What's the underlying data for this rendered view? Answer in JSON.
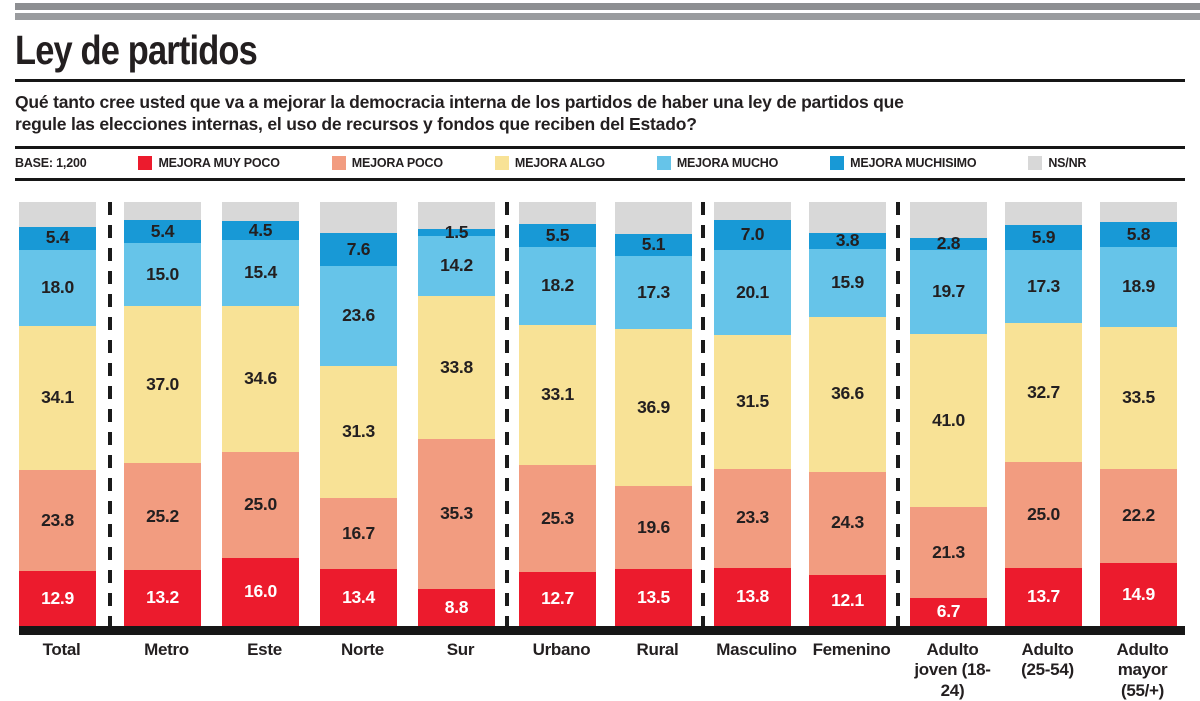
{
  "header": {
    "title": "Ley de partidos",
    "question": "Qué tanto cree usted que va a mejorar la democracia interna de los partidos de haber una ley de partidos que\nregule las elecciones internas, el uso de recursos y fondos que reciben del Estado?"
  },
  "legend": {
    "base_label": "BASE: 1,200",
    "items": [
      {
        "label": "MEJORA MUY POCO",
        "color": "#ec1b2d"
      },
      {
        "label": "MEJORA POCO",
        "color": "#f29c80"
      },
      {
        "label": "MEJORA ALGO",
        "color": "#f8e296"
      },
      {
        "label": "MEJORA MUCHO",
        "color": "#66c4e9"
      },
      {
        "label": "MEJORA MUCHISIMO",
        "color": "#1899d6"
      },
      {
        "label": "NS/NR",
        "color": "#d8d8d8"
      }
    ]
  },
  "chart_data": {
    "type": "bar",
    "variant": "100-percent-stacked-columns",
    "title": "Ley de partidos",
    "ylim": [
      0,
      100
    ],
    "gridlines": false,
    "legend_position": "top",
    "value_labels": "inside-segments-one-decimal",
    "categories": [
      "Total",
      "Metro",
      "Este",
      "Norte",
      "Sur",
      "Urbano",
      "Rural",
      "Masculino",
      "Femenino",
      "Adulto\njoven (18-24)",
      "Adulto\n(25-54)",
      "Adulto\nmayor (55/+)"
    ],
    "group_dividers_after": [
      0,
      4,
      6,
      8
    ],
    "series": [
      {
        "name": "MEJORA MUY POCO",
        "color": "#ec1b2d",
        "label_color": "#ffffff",
        "labels_visible": true,
        "values": [
          12.9,
          13.2,
          16.0,
          13.4,
          8.8,
          12.7,
          13.5,
          13.8,
          12.1,
          6.7,
          13.7,
          14.9
        ]
      },
      {
        "name": "MEJORA POCO",
        "color": "#f29c80",
        "label_color": "#231f20",
        "labels_visible": true,
        "values": [
          23.8,
          25.2,
          25.0,
          16.7,
          35.3,
          25.3,
          19.6,
          23.3,
          24.3,
          21.3,
          25.0,
          22.2
        ]
      },
      {
        "name": "MEJORA ALGO",
        "color": "#f8e296",
        "label_color": "#231f20",
        "labels_visible": true,
        "values": [
          34.1,
          37.0,
          34.6,
          31.3,
          33.8,
          33.1,
          36.9,
          31.5,
          36.6,
          41.0,
          32.7,
          33.5
        ]
      },
      {
        "name": "MEJORA MUCHO",
        "color": "#66c4e9",
        "label_color": "#231f20",
        "labels_visible": true,
        "values": [
          18.0,
          15.0,
          15.4,
          23.6,
          14.2,
          18.2,
          17.3,
          20.1,
          15.9,
          19.7,
          17.3,
          18.9
        ]
      },
      {
        "name": "MEJORA MUCHISIMO",
        "color": "#1899d6",
        "label_color": "#231f20",
        "labels_visible": true,
        "values": [
          5.4,
          5.4,
          4.5,
          7.6,
          1.5,
          5.5,
          5.1,
          7.0,
          3.8,
          2.8,
          5.9,
          5.8
        ]
      },
      {
        "name": "NS/NR",
        "color": "#d8d8d8",
        "label_color": "#231f20",
        "labels_visible": false,
        "derived_remainder": true,
        "values": [
          5.8,
          4.2,
          4.5,
          7.4,
          6.4,
          5.2,
          7.6,
          4.3,
          7.3,
          8.5,
          5.4,
          4.7
        ]
      }
    ]
  }
}
